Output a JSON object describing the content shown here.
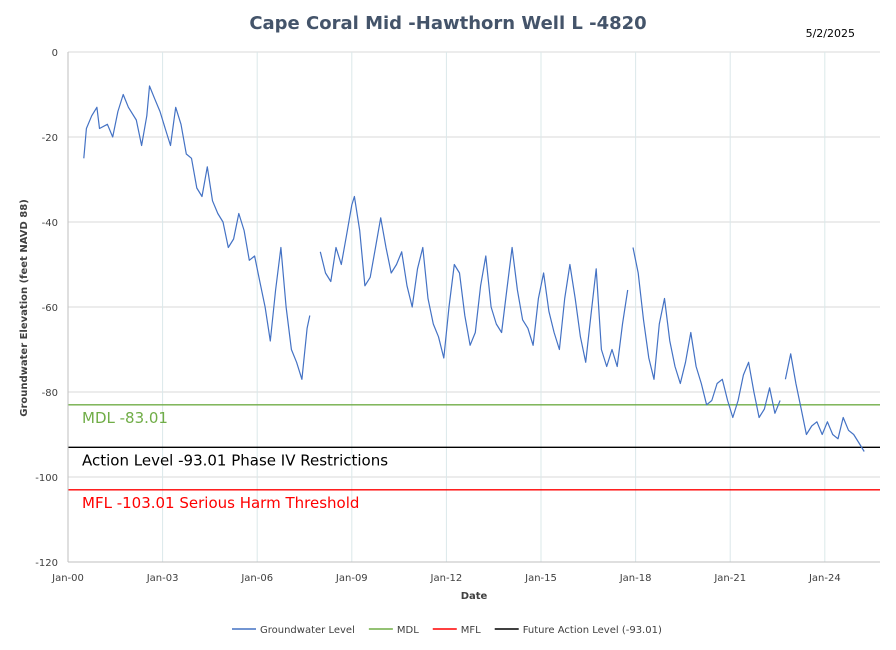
{
  "chart_data": {
    "type": "line",
    "title": "Cape Coral Mid -Hawthorn Well L -4820",
    "date_stamp": "5/2/2025",
    "xlabel": "Date",
    "ylabel": "Groundwater Elevation (feet NAVD 88)",
    "ylim": [
      -120,
      0
    ],
    "y_ticks": [
      "0",
      "-20",
      "-40",
      "-60",
      "-80",
      "-100",
      "-120"
    ],
    "x_ticks": [
      "Jan-00",
      "Jan-03",
      "Jan-06",
      "Jan-09",
      "Jan-12",
      "Jan-15",
      "Jan-18",
      "Jan-21",
      "Jan-24"
    ],
    "grid": true,
    "legend_position": "bottom",
    "reference_lines": [
      {
        "name": "MDL",
        "value": -83.01,
        "label": "MDL  -83.01",
        "color": "#70ad47"
      },
      {
        "name": "Future Action Level (-93.01)",
        "value": -93.01,
        "label": "Action Level  -93.01  Phase IV Restrictions",
        "color": "#000000"
      },
      {
        "name": "MFL",
        "value": -103.01,
        "label": "MFL  -103.01  Serious Harm Threshold",
        "color": "#ff0000"
      }
    ],
    "series": [
      {
        "name": "Groundwater Level",
        "color": "#4472c4",
        "points": [
          [
            "Jul-2000",
            -25
          ],
          [
            "Aug-2000",
            -18
          ],
          [
            "Oct-2000",
            -15
          ],
          [
            "Dec-2000",
            -13
          ],
          [
            "Jan-2001",
            -18
          ],
          [
            "Apr-2001",
            -17
          ],
          [
            "Jun-2001",
            -20
          ],
          [
            "Aug-2001",
            -14
          ],
          [
            "Oct-2001",
            -10
          ],
          [
            "Dec-2001",
            -13
          ],
          [
            "Mar-2002",
            -16
          ],
          [
            "May-2002",
            -22
          ],
          [
            "Jul-2002",
            -15
          ],
          [
            "Aug-2002",
            -8
          ],
          [
            "Oct-2002",
            -11
          ],
          [
            "Dec-2002",
            -14
          ],
          [
            "Feb-2003",
            -18
          ],
          [
            "Apr-2003",
            -22
          ],
          [
            "Jun-2003",
            -13
          ],
          [
            "Aug-2003",
            -17
          ],
          [
            "Oct-2003",
            -24
          ],
          [
            "Dec-2003",
            -25
          ],
          [
            "Feb-2004",
            -32
          ],
          [
            "Apr-2004",
            -34
          ],
          [
            "Jun-2004",
            -27
          ],
          [
            "Aug-2004",
            -35
          ],
          [
            "Oct-2004",
            -38
          ],
          [
            "Dec-2004",
            -40
          ],
          [
            "Feb-2005",
            -46
          ],
          [
            "Apr-2005",
            -44
          ],
          [
            "Jun-2005",
            -38
          ],
          [
            "Aug-2005",
            -42
          ],
          [
            "Oct-2005",
            -49
          ],
          [
            "Dec-2005",
            -48
          ],
          [
            "Feb-2006",
            -54
          ],
          [
            "Apr-2006",
            -60
          ],
          [
            "Jun-2006",
            -68
          ],
          [
            "Aug-2006",
            -56
          ],
          [
            "Oct-2006",
            -46
          ],
          [
            "Dec-2006",
            -60
          ],
          [
            "Feb-2007",
            -70
          ],
          [
            "Apr-2007",
            -73
          ],
          [
            "Jun-2007",
            -77
          ],
          [
            "Aug-2007",
            -65
          ],
          [
            "Sep-2007",
            -62
          ],
          [
            "Jan-2008",
            -47
          ],
          [
            "Mar-2008",
            -52
          ],
          [
            "May-2008",
            -54
          ],
          [
            "Jul-2008",
            -46
          ],
          [
            "Sep-2008",
            -50
          ],
          [
            "Nov-2008",
            -43
          ],
          [
            "Jan-2009",
            -36
          ],
          [
            "Feb-2009",
            -34
          ],
          [
            "Apr-2009",
            -42
          ],
          [
            "Jun-2009",
            -55
          ],
          [
            "Aug-2009",
            -53
          ],
          [
            "Oct-2009",
            -46
          ],
          [
            "Dec-2009",
            -39
          ],
          [
            "Feb-2010",
            -46
          ],
          [
            "Apr-2010",
            -52
          ],
          [
            "Jun-2010",
            -50
          ],
          [
            "Aug-2010",
            -47
          ],
          [
            "Oct-2010",
            -55
          ],
          [
            "Dec-2010",
            -60
          ],
          [
            "Feb-2011",
            -51
          ],
          [
            "Apr-2011",
            -46
          ],
          [
            "Jun-2011",
            -58
          ],
          [
            "Aug-2011",
            -64
          ],
          [
            "Oct-2011",
            -67
          ],
          [
            "Dec-2011",
            -72
          ],
          [
            "Feb-2012",
            -60
          ],
          [
            "Apr-2012",
            -50
          ],
          [
            "Jun-2012",
            -52
          ],
          [
            "Aug-2012",
            -62
          ],
          [
            "Oct-2012",
            -69
          ],
          [
            "Dec-2012",
            -66
          ],
          [
            "Feb-2013",
            -55
          ],
          [
            "Apr-2013",
            -48
          ],
          [
            "Jun-2013",
            -60
          ],
          [
            "Aug-2013",
            -64
          ],
          [
            "Oct-2013",
            -66
          ],
          [
            "Dec-2013",
            -56
          ],
          [
            "Feb-2014",
            -46
          ],
          [
            "Apr-2014",
            -56
          ],
          [
            "Jun-2014",
            -63
          ],
          [
            "Aug-2014",
            -65
          ],
          [
            "Oct-2014",
            -69
          ],
          [
            "Dec-2014",
            -58
          ],
          [
            "Feb-2015",
            -52
          ],
          [
            "Apr-2015",
            -61
          ],
          [
            "Jun-2015",
            -66
          ],
          [
            "Aug-2015",
            -70
          ],
          [
            "Oct-2015",
            -58
          ],
          [
            "Dec-2015",
            -50
          ],
          [
            "Feb-2016",
            -58
          ],
          [
            "Apr-2016",
            -67
          ],
          [
            "Jun-2016",
            -73
          ],
          [
            "Aug-2016",
            -62
          ],
          [
            "Oct-2016",
            -51
          ],
          [
            "Dec-2016",
            -70
          ],
          [
            "Feb-2017",
            -74
          ],
          [
            "Apr-2017",
            -70
          ],
          [
            "Jun-2017",
            -74
          ],
          [
            "Aug-2017",
            -64
          ],
          [
            "Oct-2017",
            -56
          ],
          [
            "Dec-2017",
            -46
          ],
          [
            "Feb-2018",
            -52
          ],
          [
            "Apr-2018",
            -63
          ],
          [
            "Jun-2018",
            -72
          ],
          [
            "Aug-2018",
            -77
          ],
          [
            "Oct-2018",
            -64
          ],
          [
            "Dec-2018",
            -58
          ],
          [
            "Feb-2019",
            -68
          ],
          [
            "Apr-2019",
            -74
          ],
          [
            "Jun-2019",
            -78
          ],
          [
            "Aug-2019",
            -73
          ],
          [
            "Oct-2019",
            -66
          ],
          [
            "Dec-2019",
            -74
          ],
          [
            "Feb-2020",
            -78
          ],
          [
            "Apr-2020",
            -83
          ],
          [
            "Jun-2020",
            -82
          ],
          [
            "Aug-2020",
            -78
          ],
          [
            "Oct-2020",
            -77
          ],
          [
            "Dec-2020",
            -82
          ],
          [
            "Feb-2021",
            -86
          ],
          [
            "Apr-2021",
            -82
          ],
          [
            "Jun-2021",
            -76
          ],
          [
            "Aug-2021",
            -73
          ],
          [
            "Oct-2021",
            -80
          ],
          [
            "Dec-2021",
            -86
          ],
          [
            "Feb-2022",
            -84
          ],
          [
            "Apr-2022",
            -79
          ],
          [
            "Jun-2022",
            -85
          ],
          [
            "Aug-2022",
            -82
          ],
          [
            "Oct-2022",
            -77
          ],
          [
            "Dec-2022",
            -71
          ],
          [
            "Feb-2023",
            -78
          ],
          [
            "Apr-2023",
            -84
          ],
          [
            "Jun-2023",
            -90
          ],
          [
            "Aug-2023",
            -88
          ],
          [
            "Oct-2023",
            -87
          ],
          [
            "Dec-2023",
            -90
          ],
          [
            "Feb-2024",
            -87
          ],
          [
            "Apr-2024",
            -90
          ],
          [
            "Jun-2024",
            -91
          ],
          [
            "Aug-2024",
            -86
          ],
          [
            "Oct-2024",
            -89
          ],
          [
            "Dec-2024",
            -90
          ],
          [
            "Feb-2025",
            -92
          ],
          [
            "Apr-2025",
            -94
          ]
        ]
      },
      {
        "name": "MDL",
        "color": "#70ad47"
      },
      {
        "name": "MFL",
        "color": "#ff0000"
      },
      {
        "name": "Future Action Level (-93.01)",
        "color": "#000000"
      }
    ]
  }
}
